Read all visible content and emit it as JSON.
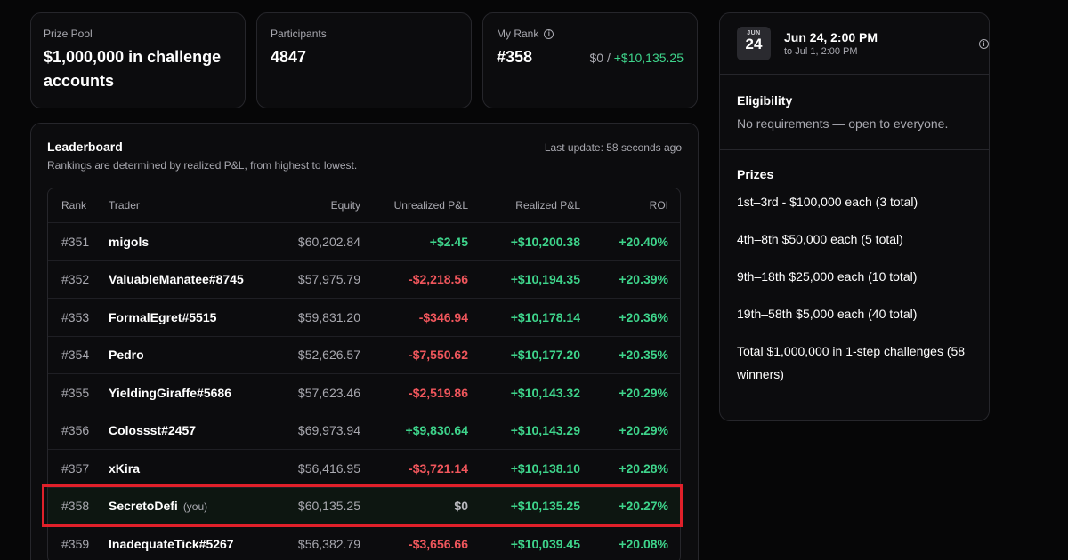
{
  "stats": {
    "prize_pool": {
      "label": "Prize Pool",
      "value": "$1,000,000 in challenge accounts"
    },
    "participants": {
      "label": "Participants",
      "value": "4847"
    },
    "my_rank": {
      "label": "My Rank",
      "value": "#358",
      "equity_part": "$0 /",
      "gain_part": "+$10,135.25"
    }
  },
  "leaderboard": {
    "title": "Leaderboard",
    "subtitle": "Rankings are determined by realized P&L, from highest to lowest.",
    "last_update": "Last update: 58 seconds ago",
    "columns": [
      "Rank",
      "Trader",
      "Equity",
      "Unrealized P&L",
      "Realized P&L",
      "ROI"
    ],
    "you_tag": "(you)",
    "rows": [
      {
        "rank": "#351",
        "trader": "migols",
        "equity": "$60,202.84",
        "unrealized": "+$2.45",
        "unrealized_sign": "pos",
        "realized": "+$10,200.38",
        "roi": "+20.40%"
      },
      {
        "rank": "#352",
        "trader": "ValuableManatee#8745",
        "equity": "$57,975.79",
        "unrealized": "-$2,218.56",
        "unrealized_sign": "neg",
        "realized": "+$10,194.35",
        "roi": "+20.39%"
      },
      {
        "rank": "#353",
        "trader": "FormalEgret#5515",
        "equity": "$59,831.20",
        "unrealized": "-$346.94",
        "unrealized_sign": "neg",
        "realized": "+$10,178.14",
        "roi": "+20.36%"
      },
      {
        "rank": "#354",
        "trader": "Pedro",
        "equity": "$52,626.57",
        "unrealized": "-$7,550.62",
        "unrealized_sign": "neg",
        "realized": "+$10,177.20",
        "roi": "+20.35%"
      },
      {
        "rank": "#355",
        "trader": "YieldingGiraffe#5686",
        "equity": "$57,623.46",
        "unrealized": "-$2,519.86",
        "unrealized_sign": "neg",
        "realized": "+$10,143.32",
        "roi": "+20.29%"
      },
      {
        "rank": "#356",
        "trader": "Colossst#2457",
        "equity": "$69,973.94",
        "unrealized": "+$9,830.64",
        "unrealized_sign": "pos",
        "realized": "+$10,143.29",
        "roi": "+20.29%"
      },
      {
        "rank": "#357",
        "trader": "xKira",
        "equity": "$56,416.95",
        "unrealized": "-$3,721.14",
        "unrealized_sign": "neg",
        "realized": "+$10,138.10",
        "roi": "+20.28%"
      },
      {
        "rank": "#358",
        "trader": "SecretoDefi",
        "equity": "$60,135.25",
        "unrealized": "$0",
        "unrealized_sign": "zero",
        "realized": "+$10,135.25",
        "roi": "+20.27%",
        "is_me": true
      },
      {
        "rank": "#359",
        "trader": "InadequateTick#5267",
        "equity": "$56,382.79",
        "unrealized": "-$3,656.66",
        "unrealized_sign": "neg",
        "realized": "+$10,039.45",
        "roi": "+20.08%"
      }
    ]
  },
  "sidebar": {
    "calendar": {
      "month": "JUN",
      "day": "24"
    },
    "date_main": "Jun 24, 2:00 PM",
    "date_sub": "to Jul 1, 2:00 PM",
    "eligibility": {
      "title": "Eligibility",
      "text": "No requirements — open to everyone."
    },
    "prizes": {
      "title": "Prizes",
      "items": [
        "1st–3rd - $100,000 each (3 total)",
        "4th–8th $50,000 each (5 total)",
        "9th–18th $25,000 each (10 total)",
        "19th–58th $5,000 each (40 total)",
        "Total $1,000,000 in 1-step challenges  (58 winners)"
      ]
    }
  },
  "colors": {
    "positive": "#3ed48b",
    "negative": "#f0565c",
    "highlight_outline": "#e0202a"
  },
  "icons": {
    "info": "info-circle-icon"
  }
}
